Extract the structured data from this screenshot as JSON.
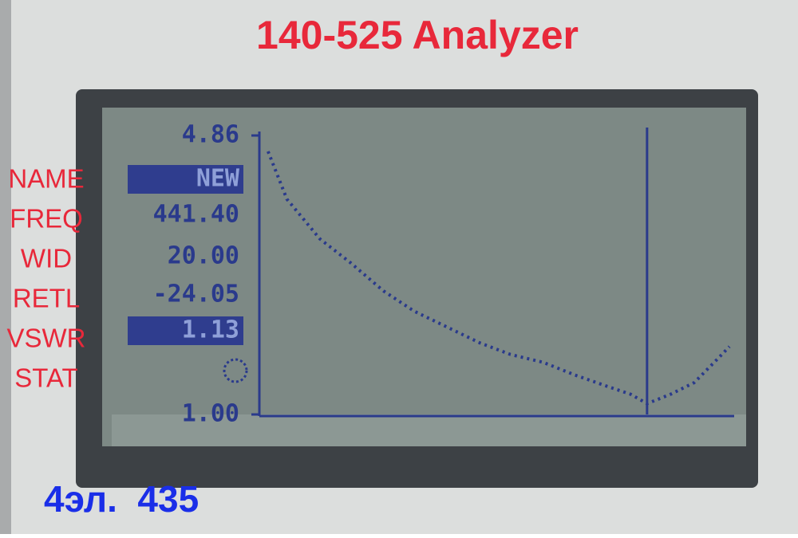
{
  "header": {
    "title": "140-525 Analyzer"
  },
  "labels": [
    "NAME",
    "FREQ",
    "WID",
    "RETL",
    "VSWR",
    "STAT"
  ],
  "readings": [
    "NEW",
    "441.40",
    "20.00",
    "-24.05",
    "1.13"
  ],
  "footer": "4эл.  435",
  "chart_data": {
    "type": "line",
    "x": [
      431.6,
      432.4,
      433.8,
      435.1,
      436.5,
      437.8,
      439.2,
      440.6,
      441.9,
      443.3,
      444.6,
      446.0,
      447.0,
      447.7,
      448.7,
      449.7,
      450.7,
      451.2
    ],
    "series": [
      {
        "color": "#2a3a8c",
        "values": [
          4.64,
          3.98,
          3.43,
          3.1,
          2.71,
          2.43,
          2.21,
          1.99,
          1.83,
          1.72,
          1.55,
          1.39,
          1.28,
          1.15,
          1.28,
          1.44,
          1.77,
          1.94
        ]
      }
    ],
    "xlim": [
      431.4,
      451.4
    ],
    "ylim": [
      1,
      4.86
    ],
    "yticks": [
      4.86,
      {
        "value": 1,
        "label": "1.00"
      }
    ],
    "marker_x": 447.7
  }
}
